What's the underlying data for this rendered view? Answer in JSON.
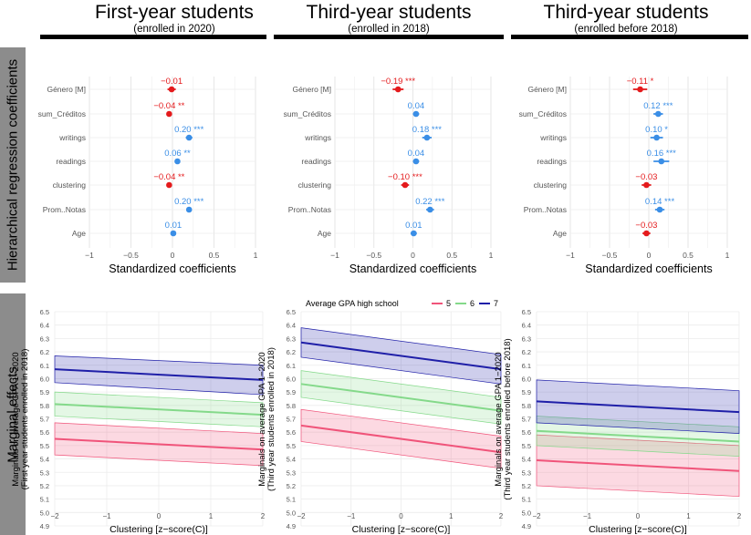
{
  "row_labels": {
    "coefficients": "Hierarchical regression coefficients",
    "marginals": "Marginal effects"
  },
  "columns": [
    {
      "title": "First-year students",
      "subtitle": "(enrolled in 2020)"
    },
    {
      "title": "Third-year students",
      "subtitle": "(enrolled in 2018)"
    },
    {
      "title": "Third-year students",
      "subtitle": "(enrolled before 2018)"
    }
  ],
  "legend": {
    "title": "Average GPA high school",
    "entries": [
      {
        "label": "5",
        "color": "#f0547a"
      },
      {
        "label": "6",
        "color": "#84d98a"
      },
      {
        "label": "7",
        "color": "#1f1fa8"
      }
    ]
  },
  "colors": {
    "positive": "#3a8ee6",
    "negative": "#e41a1c"
  },
  "chart_data": [
    {
      "type": "dot-whisker",
      "panel": "First-year students",
      "xlabel": "Standardized coefficients",
      "xlim": [
        -1,
        1
      ],
      "xticks": [
        "-1",
        "-0.5",
        "0",
        "0.5",
        "1"
      ],
      "terms": [
        "Género [M]",
        "sum_Créditos",
        "writings",
        "readings",
        "clustering",
        "Prom..Notas",
        "Age"
      ],
      "estimates": [
        -0.01,
        -0.04,
        0.2,
        0.06,
        -0.04,
        0.2,
        0.01
      ],
      "ci_low": [
        -0.06,
        -0.07,
        0.16,
        0.03,
        -0.07,
        0.17,
        -0.01
      ],
      "ci_high": [
        0.04,
        -0.01,
        0.24,
        0.09,
        -0.01,
        0.23,
        0.03
      ],
      "labels": [
        "−0.01",
        "−0.04 **",
        "0.20 ***",
        "0.06 **",
        "−0.04 **",
        "0.20 ***",
        "0.01"
      ]
    },
    {
      "type": "dot-whisker",
      "panel": "Third-year students (enrolled in 2018)",
      "xlabel": "Standardized coefficients",
      "xlim": [
        -1,
        1
      ],
      "xticks": [
        "-1",
        "-0.5",
        "0",
        "0.5",
        "1"
      ],
      "terms": [
        "Género [M]",
        "sum_Créditos",
        "writings",
        "readings",
        "clustering",
        "Prom..Notas",
        "Age"
      ],
      "estimates": [
        -0.19,
        0.04,
        0.18,
        0.04,
        -0.1,
        0.22,
        0.01
      ],
      "ci_low": [
        -0.26,
        0.0,
        0.12,
        0.0,
        -0.15,
        0.17,
        -0.03
      ],
      "ci_high": [
        -0.12,
        0.08,
        0.24,
        0.08,
        -0.05,
        0.27,
        0.05
      ],
      "labels": [
        "−0.19 ***",
        "0.04",
        "0.18 ***",
        "0.04",
        "−0.10 ***",
        "0.22 ***",
        "0.01"
      ]
    },
    {
      "type": "dot-whisker",
      "panel": "Third-year students (enrolled before 2018)",
      "xlabel": "Standardized coefficients",
      "xlim": [
        -1,
        1
      ],
      "xticks": [
        "-1",
        "-0.5",
        "0",
        "0.5",
        "1"
      ],
      "terms": [
        "Género [M]",
        "sum_Créditos",
        "writings",
        "readings",
        "clustering",
        "Prom..Notas",
        "Age"
      ],
      "estimates": [
        -0.11,
        0.12,
        0.1,
        0.16,
        -0.03,
        0.14,
        -0.03
      ],
      "ci_low": [
        -0.2,
        0.06,
        0.02,
        0.06,
        -0.09,
        0.08,
        -0.08
      ],
      "ci_high": [
        -0.02,
        0.18,
        0.18,
        0.26,
        0.03,
        0.2,
        0.02
      ],
      "labels": [
        "−0.11 *",
        "0.12 ***",
        "0.10 *",
        "0.16 ***",
        "−0.03",
        "0.14 ***",
        "−0.03"
      ]
    },
    {
      "type": "line",
      "panel": "First-year students",
      "xlabel": "Clustering [z−score(C)]",
      "ylabel": "Marginals on average GPA 1−2020",
      "ylabel2": "(First year students enrolled in 2018)",
      "xlim": [
        -2,
        2
      ],
      "ylim": [
        4.9,
        6.5
      ],
      "x": [
        -2,
        2
      ],
      "series": [
        {
          "name": "5",
          "values": [
            5.55,
            5.47
          ],
          "lower": [
            5.43,
            5.35
          ],
          "upper": [
            5.67,
            5.59
          ]
        },
        {
          "name": "6",
          "values": [
            5.81,
            5.73
          ],
          "lower": [
            5.72,
            5.64
          ],
          "upper": [
            5.9,
            5.82
          ]
        },
        {
          "name": "7",
          "values": [
            6.07,
            5.99
          ],
          "lower": [
            5.97,
            5.88
          ],
          "upper": [
            6.17,
            6.1
          ]
        }
      ]
    },
    {
      "type": "line",
      "panel": "Third-year students (enrolled in 2018)",
      "xlabel": "Clustering [z−score(C)]",
      "ylabel": "Marginals on average GPA 1−2020",
      "ylabel2": "(Third year students enrolled in 2018)",
      "xlim": [
        -2,
        2
      ],
      "ylim": [
        4.9,
        6.5
      ],
      "x": [
        -2,
        2
      ],
      "series": [
        {
          "name": "5",
          "values": [
            5.65,
            5.45
          ],
          "lower": [
            5.53,
            5.33
          ],
          "upper": [
            5.77,
            5.57
          ]
        },
        {
          "name": "6",
          "values": [
            5.96,
            5.76
          ],
          "lower": [
            5.86,
            5.66
          ],
          "upper": [
            6.06,
            5.86
          ]
        },
        {
          "name": "7",
          "values": [
            6.27,
            6.07
          ],
          "lower": [
            6.16,
            5.96
          ],
          "upper": [
            6.38,
            6.18
          ]
        }
      ]
    },
    {
      "type": "line",
      "panel": "Third-year students (enrolled before 2018)",
      "xlabel": "Clustering [z−score(C)]",
      "ylabel": "Marginals on average GPA 1−2020",
      "ylabel2": "(Third year students enrolled before 2018)",
      "xlim": [
        -2,
        2
      ],
      "ylim": [
        4.9,
        6.5
      ],
      "x": [
        -2,
        2
      ],
      "series": [
        {
          "name": "5",
          "values": [
            5.39,
            5.31
          ],
          "lower": [
            5.2,
            5.12
          ],
          "upper": [
            5.58,
            5.5
          ]
        },
        {
          "name": "6",
          "values": [
            5.61,
            5.53
          ],
          "lower": [
            5.5,
            5.42
          ],
          "upper": [
            5.72,
            5.64
          ]
        },
        {
          "name": "7",
          "values": [
            5.83,
            5.75
          ],
          "lower": [
            5.67,
            5.59
          ],
          "upper": [
            5.99,
            5.91
          ]
        }
      ]
    }
  ]
}
